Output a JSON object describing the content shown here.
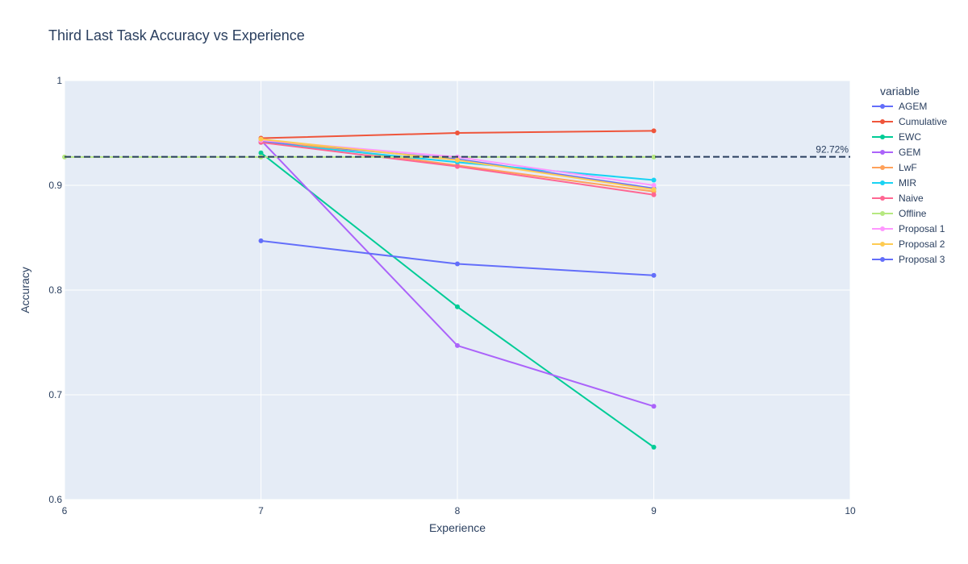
{
  "chart_data": {
    "type": "line",
    "title": "Third Last Task Accuracy vs Experience",
    "xlabel": "Experience",
    "ylabel": "Accuracy",
    "xlim": [
      6,
      10
    ],
    "ylim": [
      0.6,
      1.0
    ],
    "x_ticks": [
      6,
      7,
      8,
      9,
      10
    ],
    "y_ticks": [
      0.6,
      0.7,
      0.8,
      0.9,
      1.0
    ],
    "x_tick_labels": [
      "6",
      "7",
      "8",
      "9",
      "10"
    ],
    "y_tick_labels": [
      "0.6",
      "0.7",
      "0.8",
      "0.9",
      "1"
    ],
    "grid": true,
    "legend_title": "variable",
    "legend_position": "right",
    "reference_line": {
      "value": 0.9272,
      "label": "92.72%",
      "color": "#2a3f5f",
      "style": "dashed"
    },
    "series": [
      {
        "name": "AGEM",
        "color": "#636efa",
        "x": [
          7,
          8,
          9
        ],
        "y": [
          0.942,
          0.925,
          0.897
        ]
      },
      {
        "name": "Cumulative",
        "color": "#EF553B",
        "x": [
          7,
          8,
          9
        ],
        "y": [
          0.945,
          0.95,
          0.952
        ]
      },
      {
        "name": "EWC",
        "color": "#00cc96",
        "x": [
          7,
          8,
          9
        ],
        "y": [
          0.931,
          0.784,
          0.65
        ]
      },
      {
        "name": "GEM",
        "color": "#ab63fa",
        "x": [
          7,
          8,
          9
        ],
        "y": [
          0.943,
          0.747,
          0.689
        ]
      },
      {
        "name": "LwF",
        "color": "#FFA15A",
        "x": [
          7,
          8,
          9
        ],
        "y": [
          0.944,
          0.919,
          0.894
        ]
      },
      {
        "name": "MIR",
        "color": "#19d3f3",
        "x": [
          7,
          8,
          9
        ],
        "y": [
          0.941,
          0.922,
          0.905
        ]
      },
      {
        "name": "Naive",
        "color": "#FF6692",
        "x": [
          7,
          8,
          9
        ],
        "y": [
          0.941,
          0.918,
          0.891
        ]
      },
      {
        "name": "Offline",
        "color": "#B6E880",
        "x": [
          6,
          7,
          8,
          9
        ],
        "y": [
          0.927,
          0.927,
          0.927,
          0.927
        ]
      },
      {
        "name": "Proposal 1",
        "color": "#FF97FF",
        "x": [
          7,
          8,
          9
        ],
        "y": [
          0.943,
          0.927,
          0.9
        ]
      },
      {
        "name": "Proposal 2",
        "color": "#FECB52",
        "x": [
          7,
          8,
          9
        ],
        "y": [
          0.944,
          0.924,
          0.896
        ]
      },
      {
        "name": "Proposal 3",
        "color": "#636efa",
        "x": [
          7,
          8,
          9
        ],
        "y": [
          0.847,
          0.825,
          0.814
        ]
      }
    ]
  }
}
